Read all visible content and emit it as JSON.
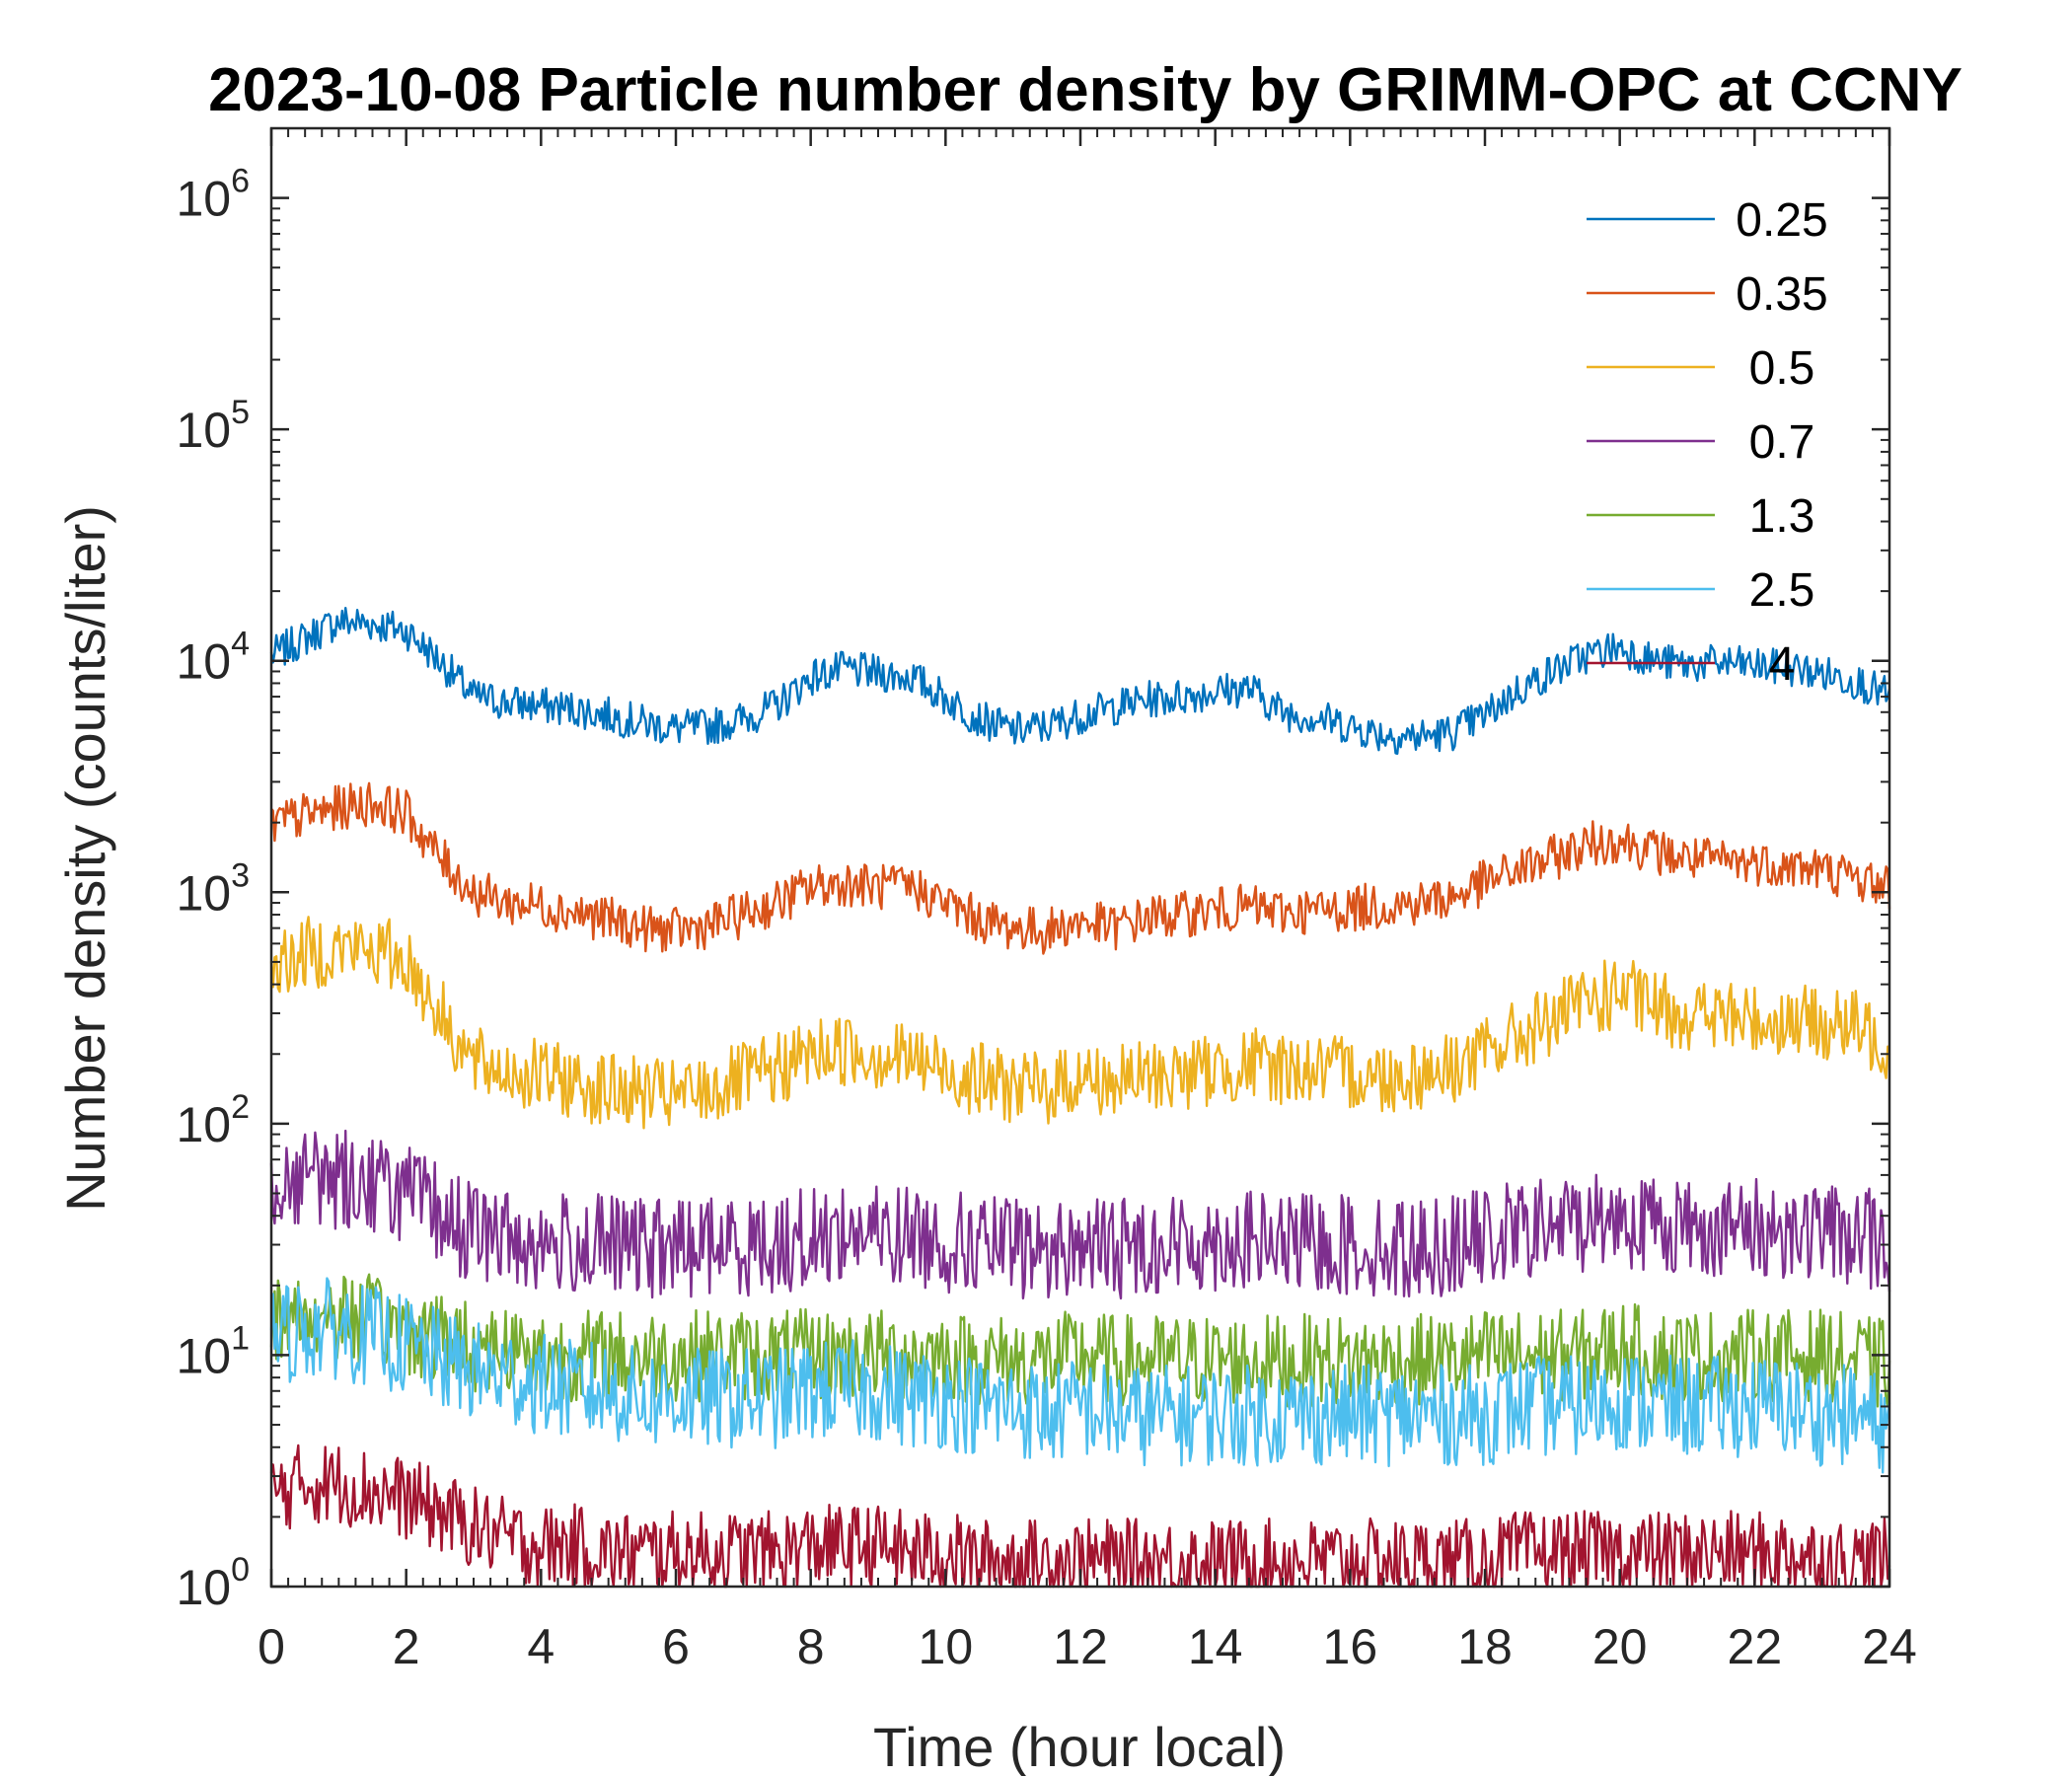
{
  "chart_data": {
    "type": "line",
    "title": "2023-10-08 Particle number density by GRIMM-OPC at CCNY",
    "xlabel": "Time (hour local)",
    "ylabel": "Number density (counts/liter)",
    "xlim": [
      0,
      24
    ],
    "ylim": [
      1,
      2000000
    ],
    "yscale": "log",
    "x_ticks": [
      0,
      2,
      4,
      6,
      8,
      10,
      12,
      14,
      16,
      18,
      20,
      22,
      24
    ],
    "x_tick_labels": [
      "0",
      "2",
      "4",
      "6",
      "8",
      "10",
      "12",
      "14",
      "16",
      "18",
      "20",
      "22",
      "24"
    ],
    "y_ticks": [
      {
        "value": 1,
        "base": "10",
        "exp": "0"
      },
      {
        "value": 10,
        "base": "10",
        "exp": "1"
      },
      {
        "value": 100,
        "base": "10",
        "exp": "2"
      },
      {
        "value": 1000,
        "base": "10",
        "exp": "3"
      },
      {
        "value": 10000,
        "base": "10",
        "exp": "4"
      },
      {
        "value": 100000,
        "base": "10",
        "exp": "5"
      },
      {
        "value": 1000000,
        "base": "10",
        "exp": "6"
      }
    ],
    "legend_position": "top-right",
    "x": [
      0,
      0.5,
      1,
      1.5,
      2,
      2.5,
      3,
      3.5,
      4,
      4.5,
      5,
      5.5,
      6,
      6.5,
      7,
      7.5,
      8,
      8.5,
      9,
      9.5,
      10,
      10.5,
      11,
      11.5,
      12,
      12.5,
      13,
      13.5,
      14,
      14.5,
      15,
      15.5,
      16,
      16.5,
      17,
      17.5,
      18,
      18.5,
      19,
      19.5,
      20,
      20.5,
      21,
      21.5,
      22,
      22.5,
      23,
      23.5,
      24
    ],
    "series": [
      {
        "name": "0.25",
        "color": "#0072BD",
        "values": [
          10500,
          12500,
          14800,
          14500,
          13500,
          10000,
          7000,
          6600,
          6400,
          6200,
          5800,
          5400,
          5100,
          5200,
          5600,
          6400,
          8500,
          9200,
          8800,
          8500,
          6900,
          5600,
          5000,
          5200,
          5800,
          6300,
          6800,
          7000,
          7400,
          7600,
          6000,
          5700,
          5200,
          4800,
          4700,
          4900,
          5800,
          7500,
          9000,
          10500,
          11500,
          10000,
          9600,
          9800,
          9500,
          9300,
          8800,
          8200,
          7000
        ]
      },
      {
        "name": "0.35",
        "color": "#D95319",
        "values": [
          1950,
          2150,
          2300,
          2450,
          2200,
          1400,
          1000,
          900,
          880,
          820,
          760,
          700,
          680,
          720,
          800,
          900,
          1050,
          1100,
          1050,
          1050,
          900,
          760,
          700,
          680,
          750,
          700,
          780,
          800,
          840,
          860,
          820,
          830,
          850,
          880,
          900,
          950,
          1100,
          1250,
          1400,
          1600,
          1700,
          1500,
          1400,
          1350,
          1350,
          1300,
          1250,
          1150,
          1050
        ]
      },
      {
        "name": "0.5",
        "color": "#EDB120",
        "values": [
          480,
          540,
          580,
          560,
          510,
          300,
          180,
          170,
          160,
          150,
          140,
          135,
          130,
          140,
          155,
          170,
          200,
          210,
          200,
          190,
          170,
          155,
          145,
          140,
          160,
          150,
          160,
          165,
          170,
          180,
          175,
          170,
          165,
          160,
          165,
          175,
          200,
          240,
          280,
          330,
          370,
          320,
          300,
          290,
          280,
          280,
          270,
          260,
          220
        ]
      },
      {
        "name": "0.7",
        "color": "#7E2F8E",
        "values": [
          55,
          60,
          58,
          56,
          50,
          40,
          34,
          32,
          30,
          30,
          30,
          29,
          29,
          30,
          30,
          30,
          32,
          34,
          33,
          33,
          31,
          30,
          29,
          28,
          30,
          29,
          30,
          30,
          31,
          31,
          30,
          30,
          30,
          29,
          29,
          30,
          32,
          34,
          36,
          38,
          40,
          37,
          36,
          35,
          35,
          35,
          34,
          33,
          30
        ]
      },
      {
        "name": "1.3",
        "color": "#77AC30",
        "values": [
          14,
          15,
          15,
          14,
          13,
          12,
          11,
          11,
          10,
          10,
          10,
          10,
          10,
          10,
          10,
          10,
          10,
          10,
          10,
          10,
          10,
          9.5,
          9.5,
          9.5,
          10,
          9.5,
          9.5,
          9.5,
          9.5,
          9.5,
          9.5,
          9.5,
          9.5,
          9.5,
          9.5,
          9.5,
          10,
          10,
          10,
          10,
          11,
          10,
          10,
          10,
          10,
          10,
          10,
          9.5,
          9
        ]
      },
      {
        "name": "2.5",
        "color": "#4DBEEE",
        "values": [
          12,
          13,
          13,
          12,
          11,
          9.5,
          8.5,
          8,
          7.5,
          7,
          7,
          6.5,
          6.5,
          6.5,
          6.5,
          6.5,
          7,
          7,
          7,
          6.5,
          6.5,
          6,
          6,
          5.5,
          6,
          5.5,
          5.5,
          5.5,
          5.5,
          5.5,
          5.5,
          5.5,
          5.5,
          5.5,
          5.5,
          5.5,
          5.5,
          6,
          6,
          6,
          6.5,
          6,
          6,
          6,
          6,
          6,
          5.5,
          5.5,
          5
        ]
      },
      {
        "name": "4",
        "color": "#A2142F",
        "values": [
          2.5,
          2.8,
          2.8,
          2.6,
          2.4,
          2.1,
          1.8,
          1.6,
          1.5,
          1.5,
          1.4,
          1.4,
          1.4,
          1.4,
          1.4,
          1.4,
          1.5,
          1.5,
          1.5,
          1.4,
          1.4,
          1.3,
          1.3,
          1.3,
          1.3,
          1.3,
          1.3,
          1.3,
          1.3,
          1.3,
          1.3,
          1.3,
          1.3,
          1.3,
          1.3,
          1.3,
          1.3,
          1.4,
          1.4,
          1.4,
          1.4,
          1.4,
          1.4,
          1.4,
          1.4,
          1.4,
          1.3,
          1.3,
          1.3
        ]
      }
    ]
  }
}
